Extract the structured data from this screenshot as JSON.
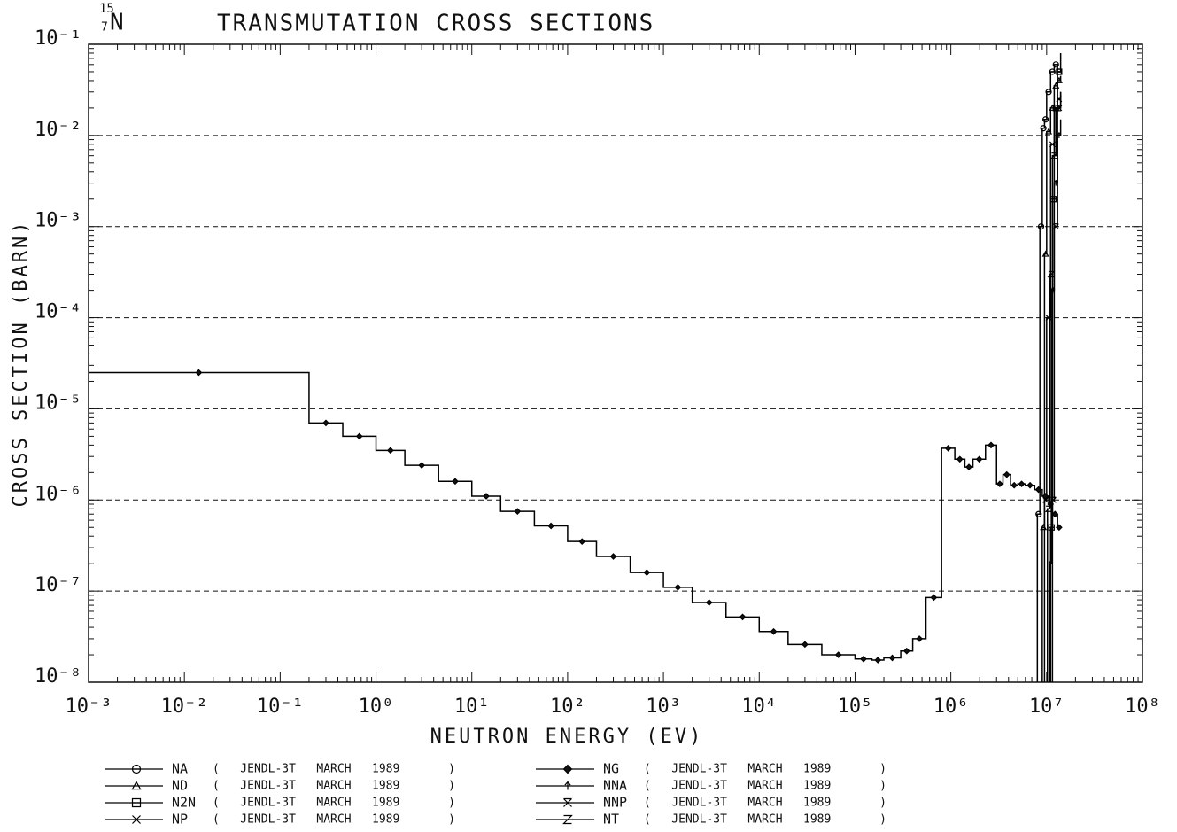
{
  "chart_data": {
    "type": "step",
    "title": "TRANSMUTATION CROSS SECTIONS",
    "nuclide": {
      "mass": "15",
      "atomic_number": "7",
      "symbol": "N"
    },
    "x_label": "NEUTRON ENERGY (EV)",
    "y_label": "CROSS SECTION (BARN)",
    "log_x": true,
    "log_y": true,
    "grid": "y-dashed",
    "xlim": [
      0.001,
      100000000
    ],
    "ylim": [
      1e-08,
      0.1
    ],
    "xticks": [
      {
        "value": 0.001,
        "label": "10⁻³"
      },
      {
        "value": 0.01,
        "label": "10⁻²"
      },
      {
        "value": 0.1,
        "label": "10⁻¹"
      },
      {
        "value": 1,
        "label": "10⁰"
      },
      {
        "value": 10,
        "label": "10¹"
      },
      {
        "value": 100,
        "label": "10²"
      },
      {
        "value": 1000,
        "label": "10³"
      },
      {
        "value": 10000,
        "label": "10⁴"
      },
      {
        "value": 100000,
        "label": "10⁵"
      },
      {
        "value": 1000000,
        "label": "10⁶"
      },
      {
        "value": 10000000,
        "label": "10⁷"
      },
      {
        "value": 100000000,
        "label": "10⁸"
      }
    ],
    "yticks": [
      {
        "value": 1e-08,
        "label": "10⁻⁸"
      },
      {
        "value": 1e-07,
        "label": "10⁻⁷"
      },
      {
        "value": 1e-06,
        "label": "10⁻⁶"
      },
      {
        "value": 1e-05,
        "label": "10⁻⁵"
      },
      {
        "value": 0.0001,
        "label": "10⁻⁴"
      },
      {
        "value": 0.001,
        "label": "10⁻³"
      },
      {
        "value": 0.01,
        "label": "10⁻²"
      },
      {
        "value": 0.1,
        "label": "10⁻¹"
      }
    ],
    "series": [
      {
        "name": "NA",
        "source": "(   JENDL-3T   MARCH   1989       )",
        "marker": "circle",
        "color": "#000000",
        "x": [
          8000000,
          8500000,
          9000000,
          9500000,
          10000000,
          11000000,
          12000000,
          13000000,
          14000000
        ],
        "values": [
          7e-07,
          0.001,
          0.012,
          0.015,
          0.03,
          0.05,
          0.06,
          0.05,
          0.05
        ]
      },
      {
        "name": "ND",
        "source": "(   JENDL-3T   MARCH   1989       )",
        "marker": "triangle",
        "color": "#000000",
        "x": [
          9000000,
          9500000,
          10000000,
          11000000,
          12000000,
          13000000,
          14000000
        ],
        "values": [
          5e-07,
          0.0005,
          0.011,
          0.02,
          0.035,
          0.04,
          0.045
        ]
      },
      {
        "name": "N2N",
        "source": "(   JENDL-3T   MARCH   1989       )",
        "marker": "square",
        "color": "#000000",
        "x": [
          11000000,
          11500000,
          12000000,
          13000000,
          14000000
        ],
        "values": [
          5e-07,
          0.002,
          0.02,
          0.05,
          0.08
        ]
      },
      {
        "name": "NP",
        "source": "(   JENDL-3T   MARCH   1989       )",
        "marker": "x",
        "color": "#000000",
        "x": [
          9500000,
          10000000,
          11000000,
          12000000,
          13000000,
          14000000
        ],
        "values": [
          1e-06,
          0.0001,
          0.008,
          0.02,
          0.025,
          0.03
        ]
      },
      {
        "name": "NG",
        "source": "(   JENDL-3T   MARCH   1989       )",
        "marker": "diamond",
        "color": "#000000",
        "x": [
          0.001,
          0.2,
          0.45,
          1,
          2,
          4.5,
          10,
          20,
          45,
          100,
          200,
          450,
          1000,
          2000,
          4500,
          10000,
          20000,
          45000,
          100000,
          150000,
          200000,
          300000,
          400000,
          550000,
          800000,
          1100000,
          1400000,
          1700000,
          2300000,
          3000000,
          3500000,
          4200000,
          5000000,
          6000000,
          7500000,
          9000000,
          10500000,
          11500000,
          13000000,
          14000000
        ],
        "values": [
          2.5e-05,
          7e-06,
          5e-06,
          3.5e-06,
          2.4e-06,
          1.6e-06,
          1.1e-06,
          7.5e-07,
          5.2e-07,
          3.5e-07,
          2.4e-07,
          1.6e-07,
          1.1e-07,
          7.5e-08,
          5.2e-08,
          3.6e-08,
          2.6e-08,
          2e-08,
          1.8e-08,
          1.75e-08,
          1.85e-08,
          2.2e-08,
          3e-08,
          8.5e-08,
          3.7e-06,
          2.8e-06,
          2.3e-06,
          2.8e-06,
          4e-06,
          1.5e-06,
          1.9e-06,
          1.45e-06,
          1.5e-06,
          1.45e-06,
          1.3e-06,
          1.1e-06,
          9e-07,
          7e-07,
          5e-07,
          5e-07
        ]
      },
      {
        "name": "NNA",
        "source": "(   JENDL-3T   MARCH   1989       )",
        "marker": "arrow",
        "color": "#000000",
        "x": [
          10800000,
          11200000,
          12000000,
          13000000,
          14000000
        ],
        "values": [
          2e-07,
          0.0002,
          0.003,
          0.01,
          0.015
        ]
      },
      {
        "name": "NNP",
        "source": "(   JENDL-3T   MARCH   1989       )",
        "marker": "xbar",
        "color": "#000000",
        "x": [
          11500000,
          12000000,
          13000000,
          14000000
        ],
        "values": [
          1e-06,
          0.001,
          0.02,
          0.03
        ]
      },
      {
        "name": "NT",
        "source": "(   JENDL-3T   MARCH   1989       )",
        "marker": "z",
        "color": "#000000",
        "x": [
          10200000,
          10800000,
          11500000,
          12500000,
          14000000
        ],
        "values": [
          8e-07,
          0.0003,
          0.006,
          0.02,
          0.025
        ]
      }
    ]
  }
}
